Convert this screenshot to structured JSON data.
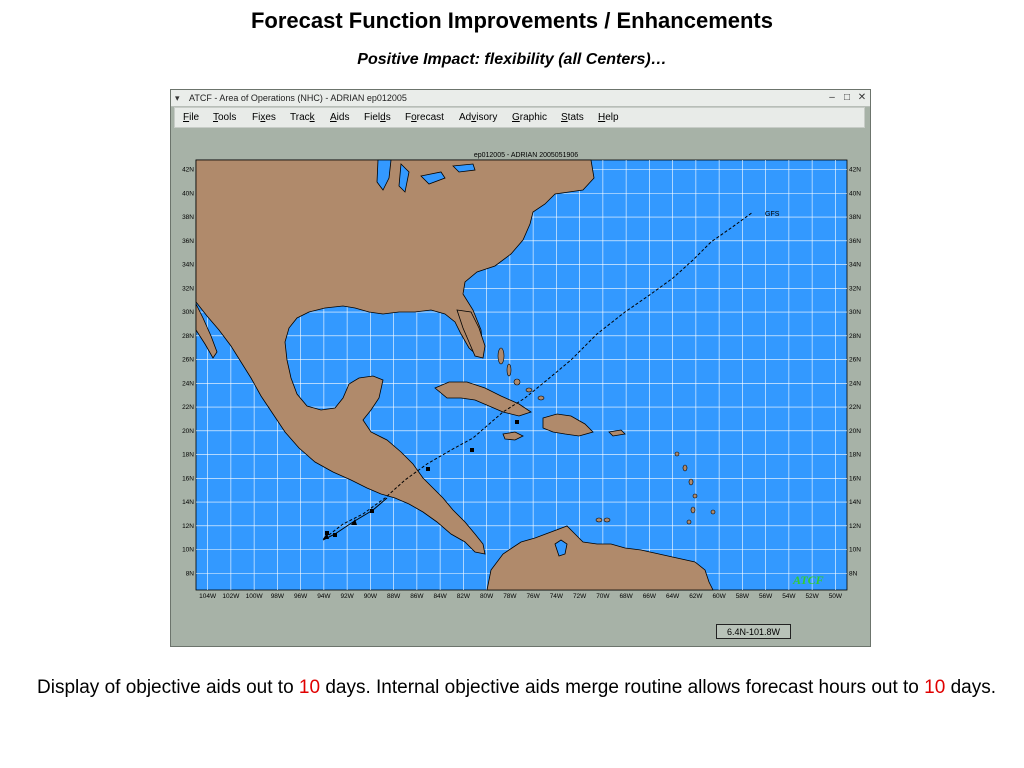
{
  "slide": {
    "title": "Forecast Function Improvements / Enhancements",
    "subtitle": "Positive Impact: flexibility (all Centers)…"
  },
  "window": {
    "title": "ATCF - Area of Operations (NHC) - ADRIAN ep012005",
    "controls": [
      "–",
      "□",
      "✕"
    ]
  },
  "menu": [
    {
      "key": "F",
      "rest": "ile"
    },
    {
      "key": "T",
      "rest": "ools"
    },
    {
      "pre": "Fi",
      "key": "x",
      "rest": "es"
    },
    {
      "pre": "Trac",
      "key": "k",
      "rest": ""
    },
    {
      "key": "A",
      "rest": "ids"
    },
    {
      "pre": "Fiel",
      "key": "d",
      "rest": "s"
    },
    {
      "pre": "F",
      "key": "o",
      "rest": "recast"
    },
    {
      "pre": "Ad",
      "key": "v",
      "rest": "isory"
    },
    {
      "key": "G",
      "rest": "raphic"
    },
    {
      "key": "S",
      "rest": "tats"
    },
    {
      "key": "H",
      "rest": "elp"
    }
  ],
  "map": {
    "header": "ep012005 - ADRIAN  2005051906",
    "lat_labels": [
      "42N",
      "40N",
      "38N",
      "36N",
      "34N",
      "32N",
      "30N",
      "28N",
      "26N",
      "24N",
      "22N",
      "20N",
      "18N",
      "16N",
      "14N",
      "12N",
      "10N",
      "8N"
    ],
    "lon_labels": [
      "104W",
      "102W",
      "100W",
      "98W",
      "96W",
      "94W",
      "92W",
      "90W",
      "88W",
      "86W",
      "84W",
      "82W",
      "80W",
      "78W",
      "76W",
      "74W",
      "72W",
      "70W",
      "68W",
      "66W",
      "64W",
      "62W",
      "60W",
      "58W",
      "56W",
      "54W",
      "52W",
      "50W"
    ],
    "track_label": "GFS",
    "logo": "ATCF",
    "colors": {
      "ocean": "#3399ff",
      "land": "#b08a6b",
      "grid": "#ffffff",
      "border": "#000000"
    }
  },
  "status": {
    "readout": "6.4N-101.8W"
  },
  "body": {
    "part1": "Display of objective aids out to ",
    "num1": "10",
    "part2": " days.  Internal objective aids merge routine allows forecast hours out to ",
    "num2": "10",
    "part3": " days."
  }
}
